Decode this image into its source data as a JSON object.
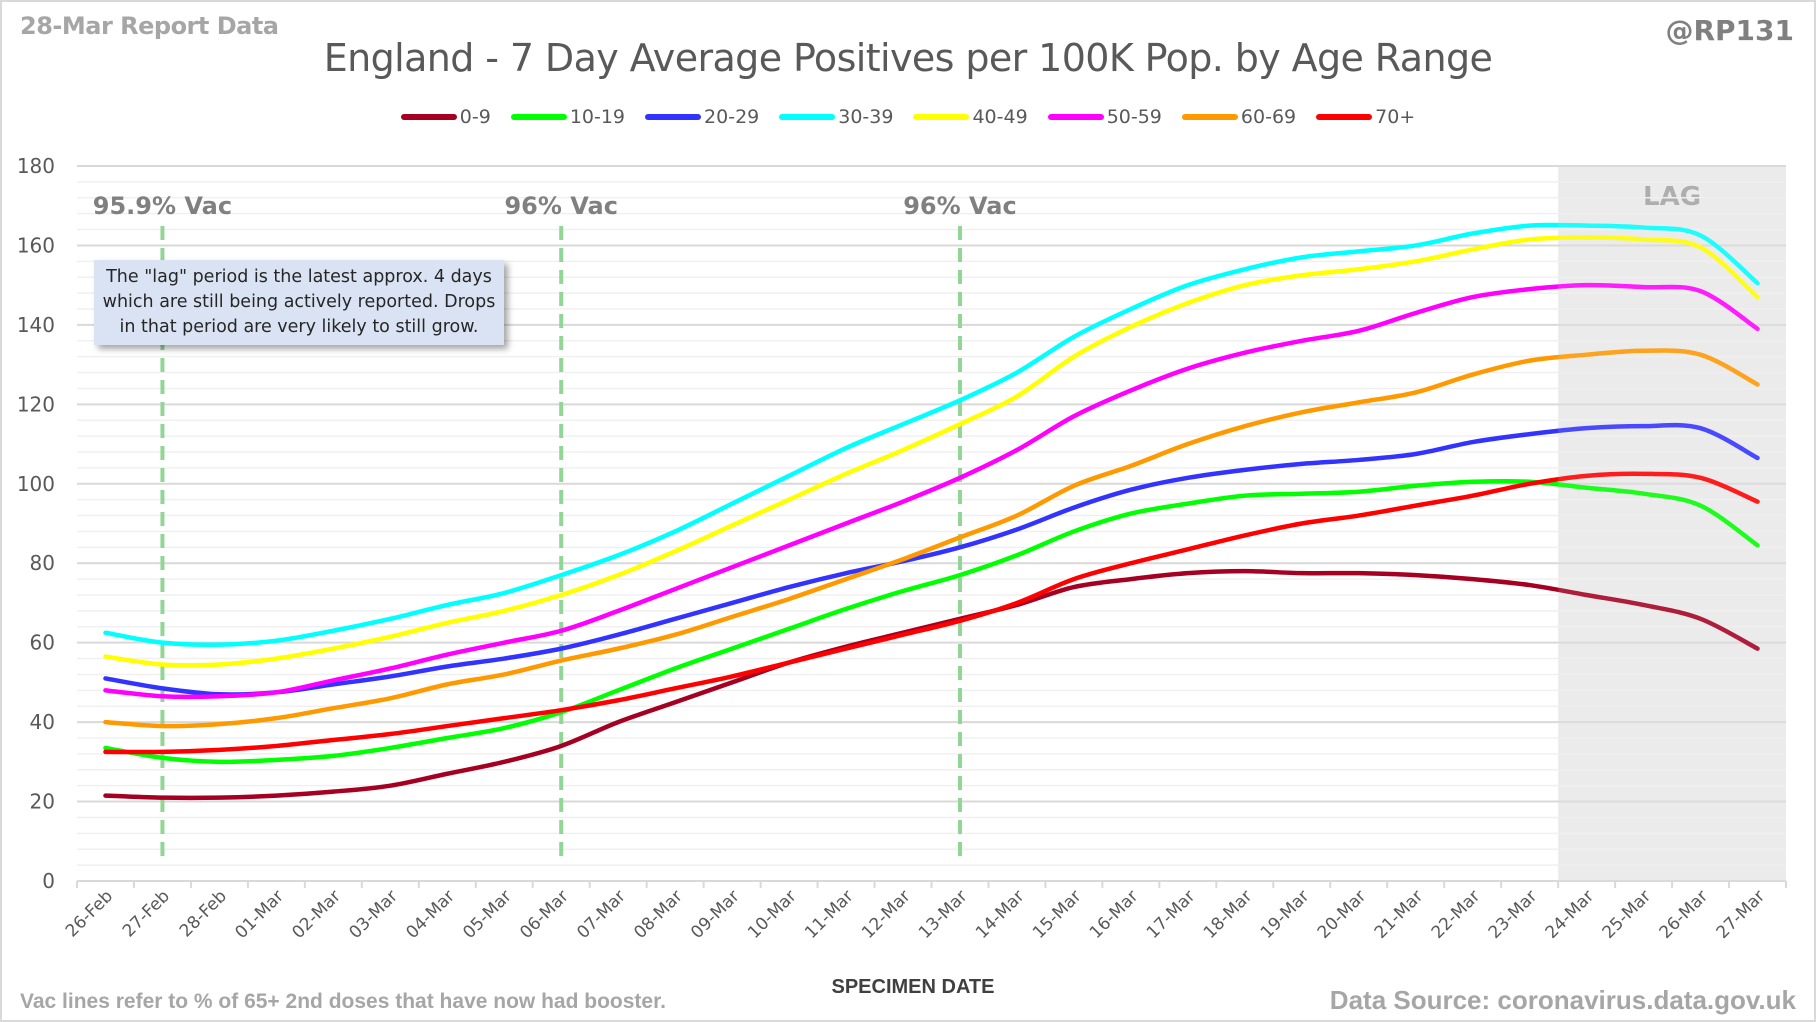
{
  "header": {
    "report_label": "28-Mar Report Data",
    "handle": "@RP131"
  },
  "annotation_text": "The \"lag\" period is the latest approx. 4 days which are still being actively reported.  Drops in that period are very likely to still grow.",
  "footer": {
    "note": "Vac lines refer to % of 65+ 2nd doses that have now had booster.",
    "source": "Data Source: coronavirus.data.gov.uk"
  },
  "chart_data": {
    "type": "line",
    "title": "England - 7 Day Average Positives per 100K Pop. by Age Range",
    "xlabel": "SPECIMEN DATE",
    "ylabel": "",
    "ylim": [
      0,
      180
    ],
    "yticks": [
      0,
      20,
      40,
      60,
      80,
      100,
      120,
      140,
      160,
      180
    ],
    "grid": true,
    "legend_position": "top",
    "categories": [
      "26-Feb",
      "27-Feb",
      "28-Feb",
      "01-Mar",
      "02-Mar",
      "03-Mar",
      "04-Mar",
      "05-Mar",
      "06-Mar",
      "07-Mar",
      "08-Mar",
      "09-Mar",
      "10-Mar",
      "11-Mar",
      "12-Mar",
      "13-Mar",
      "14-Mar",
      "15-Mar",
      "16-Mar",
      "17-Mar",
      "18-Mar",
      "19-Mar",
      "20-Mar",
      "21-Mar",
      "22-Mar",
      "23-Mar",
      "24-Mar",
      "25-Mar",
      "26-Mar",
      "27-Mar"
    ],
    "series": [
      {
        "name": "0-9",
        "color": "#a50021",
        "values": [
          21.5,
          21,
          21,
          21.5,
          22.5,
          24,
          27,
          30,
          34,
          40,
          45,
          50,
          55,
          59,
          62.5,
          66,
          69.5,
          74,
          76,
          77.5,
          78,
          77.5,
          77.5,
          77,
          76,
          74.5,
          72,
          69.5,
          66,
          58.5
        ]
      },
      {
        "name": "10-19",
        "color": "#00ff00",
        "values": [
          33.5,
          31,
          30,
          30.5,
          31.5,
          33.5,
          36,
          38.5,
          42.5,
          48,
          53.5,
          58.5,
          63.5,
          68.5,
          73,
          77,
          82,
          88,
          92.5,
          95,
          97,
          97.5,
          98,
          99.5,
          100.5,
          100.5,
          99,
          97.5,
          94.5,
          84.5
        ]
      },
      {
        "name": "20-29",
        "color": "#3333ff",
        "values": [
          51,
          48.5,
          47,
          47.5,
          49.5,
          51.5,
          54,
          56,
          58.5,
          62,
          66,
          70,
          74,
          77.5,
          80.5,
          84,
          88.5,
          94,
          98.5,
          101.5,
          103.5,
          105,
          106,
          107.5,
          110.5,
          112.5,
          114,
          114.5,
          114,
          106.5
        ]
      },
      {
        "name": "30-39",
        "color": "#00ffff",
        "values": [
          62.5,
          60,
          59.5,
          60.5,
          63,
          66,
          69.5,
          72.5,
          77,
          82,
          88,
          95,
          102,
          109,
          115,
          121,
          128,
          137,
          144,
          150,
          154,
          157,
          158.5,
          160,
          163,
          165,
          165,
          164.5,
          162.5,
          150.5
        ]
      },
      {
        "name": "40-49",
        "color": "#ffff00",
        "values": [
          56.5,
          54.5,
          54.5,
          56,
          58.5,
          61.5,
          65,
          68,
          72,
          77,
          83,
          89.5,
          96,
          102.5,
          108.5,
          115,
          122,
          132,
          139.5,
          145.5,
          150,
          152.5,
          154,
          156,
          159,
          161.5,
          162,
          161.5,
          159.5,
          147
        ]
      },
      {
        "name": "50-59",
        "color": "#ff00ff",
        "values": [
          48,
          46.5,
          46.5,
          47.5,
          50.5,
          53.5,
          57,
          60,
          63,
          68,
          73.5,
          79,
          84.5,
          90,
          95.5,
          101.5,
          108.5,
          117,
          123.5,
          129,
          133,
          136,
          138.5,
          143,
          147,
          149,
          150,
          149.5,
          148.5,
          139
        ]
      },
      {
        "name": "60-69",
        "color": "#ff9900",
        "values": [
          40,
          39,
          39.5,
          41,
          43.5,
          46,
          49.5,
          52,
          55.5,
          58.5,
          62,
          66.5,
          71,
          76,
          81,
          86.5,
          92,
          99.5,
          104.5,
          110,
          114.5,
          118,
          120.5,
          123,
          127.5,
          131,
          132.5,
          133.5,
          132.5,
          125
        ]
      },
      {
        "name": "70+",
        "color": "#ff0000",
        "values": [
          32.5,
          32.5,
          33,
          34,
          35.5,
          37,
          39,
          41,
          43,
          45.5,
          48.5,
          51.5,
          55,
          58.5,
          62,
          65.5,
          70,
          76,
          80,
          83.5,
          87,
          90,
          92,
          94.5,
          97,
          100,
          102,
          102.5,
          101.5,
          95.5
        ]
      }
    ],
    "vac_lines": [
      {
        "label": "95.9% Vac",
        "date": "27-Feb",
        "color": "#92d695"
      },
      {
        "label": "96% Vac",
        "date": "06-Mar",
        "color": "#92d695"
      },
      {
        "label": "96% Vac",
        "date": "13-Mar",
        "color": "#92d695"
      }
    ],
    "lag_region": {
      "label": "LAG",
      "start": "24-Mar",
      "end": "27-Mar",
      "color": "#ebebeb"
    }
  }
}
